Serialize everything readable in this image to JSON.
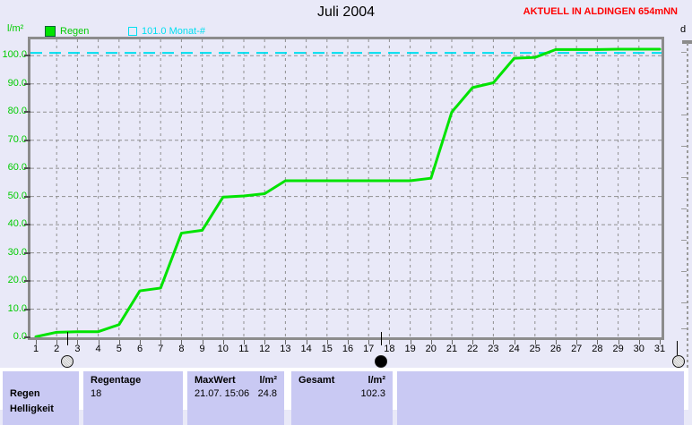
{
  "header": {
    "title": "Juli 2004",
    "status": "AKTUELL IN ALDINGEN 654mNN"
  },
  "right_panel": {
    "label": "d"
  },
  "chart_data": {
    "type": "line",
    "title": "Juli 2004",
    "ylabel": "l/m²",
    "xlabel": "",
    "x": [
      1,
      2,
      3,
      4,
      5,
      6,
      7,
      8,
      9,
      10,
      11,
      12,
      13,
      14,
      15,
      16,
      17,
      18,
      19,
      20,
      21,
      22,
      23,
      24,
      25,
      26,
      27,
      28,
      29,
      30,
      31
    ],
    "series": [
      {
        "name": "Regen",
        "color": "#00e300",
        "values": [
          0.2,
          1.8,
          2.0,
          2.0,
          4.5,
          16.5,
          17.5,
          37.0,
          38.0,
          49.8,
          50.2,
          51.0,
          55.6,
          55.6,
          55.6,
          55.6,
          55.6,
          55.6,
          55.6,
          56.5,
          80.0,
          88.7,
          90.4,
          99.1,
          99.4,
          102.2,
          102.2,
          102.2,
          102.3,
          102.3,
          102.3
        ]
      }
    ],
    "reference_line": {
      "label": "101.0 Monat-#",
      "value": 101.0,
      "color": "#00dff0",
      "style": "dashed"
    },
    "ylim": [
      0,
      105.8
    ],
    "yticks": [
      0,
      10,
      20,
      30,
      40,
      50,
      60,
      70,
      80,
      90,
      100
    ],
    "grid": true,
    "legend_position": "top-left",
    "moon_markers": [
      {
        "day": 2.5,
        "phase": "full"
      },
      {
        "day": 17.6,
        "phase": "new"
      },
      {
        "day": 31.9,
        "phase": "full"
      }
    ]
  },
  "table": {
    "row_label": {
      "line1": "Regen",
      "line2": "Helligkeit"
    },
    "regentage": {
      "header": "Regentage",
      "value": "18"
    },
    "maxwert": {
      "header": "MaxWert",
      "unit": "l/m²",
      "value_time": "21.07. 15:06",
      "value_amount": "24.8"
    },
    "gesamt": {
      "header": "Gesamt",
      "unit": "l/m²",
      "value": "102.3"
    }
  }
}
